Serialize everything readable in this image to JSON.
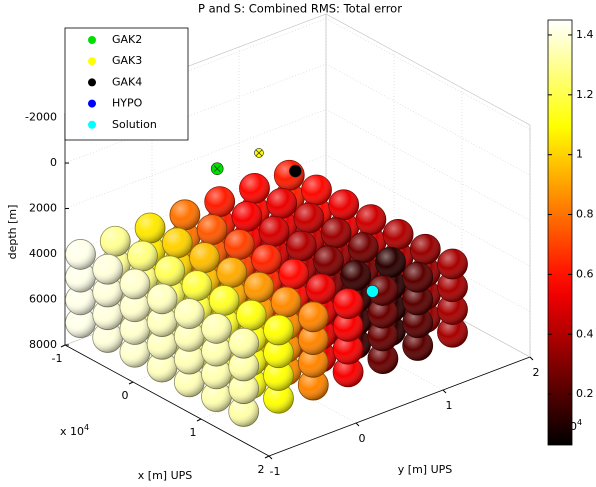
{
  "chart_data": {
    "type": "scatter3d",
    "title": "P and S: Combined RMS: Total error",
    "xlabel": "x [m] UPS",
    "ylabel": "y [m] UPS",
    "zlabel": "depth [m]",
    "x_exponent": {
      "base": "x 10",
      "power": 4
    },
    "y_exponent": {
      "base": "x 10",
      "power": 4
    },
    "xlim": [
      -1,
      2
    ],
    "ylim": [
      -1,
      2
    ],
    "zlim": [
      -2200,
      8000
    ],
    "xticks": [
      -1,
      0,
      1,
      2
    ],
    "yticks": [
      -1,
      0,
      1,
      2
    ],
    "zticks": [
      -2000,
      0,
      2000,
      4000,
      6000,
      8000
    ],
    "z_reversed": true,
    "grid": true,
    "colormap": "hot",
    "clim": [
      0.03,
      1.45
    ],
    "cticks": [
      0.2,
      0.4,
      0.6,
      0.8,
      1,
      1.2,
      1.4
    ],
    "grid_x": [
      -0.9,
      -0.5,
      -0.1,
      0.3,
      0.7,
      1.1,
      1.5
    ],
    "grid_y": [
      -0.9,
      -0.5,
      -0.1,
      0.3,
      0.7,
      1.1,
      1.5
    ],
    "grid_depth": [
      4000,
      5000,
      6000,
      7000
    ],
    "errors": [
      [
        1.42,
        1.3,
        1.05,
        0.8,
        0.62,
        0.58,
        0.62
      ],
      [
        1.4,
        1.27,
        1.0,
        0.75,
        0.55,
        0.52,
        0.58
      ],
      [
        1.38,
        1.22,
        0.96,
        0.7,
        0.48,
        0.45,
        0.52
      ],
      [
        1.36,
        1.18,
        0.92,
        0.64,
        0.4,
        0.36,
        0.46
      ],
      [
        1.35,
        1.15,
        0.88,
        0.58,
        0.3,
        0.27,
        0.4
      ],
      [
        1.34,
        1.12,
        0.85,
        0.52,
        0.15,
        0.12,
        0.35
      ],
      [
        1.33,
        1.1,
        0.84,
        0.55,
        0.25,
        0.22,
        0.38
      ]
    ],
    "stations": [
      {
        "name": "GAK2",
        "color": "#00e000",
        "x": 0.01,
        "y": -0.04,
        "depth": 0
      },
      {
        "name": "GAK3",
        "color": "#ffff00",
        "x": 0.01,
        "y": 0.44,
        "depth": 0
      },
      {
        "name": "GAK4",
        "color": "#000000",
        "x": 0.52,
        "y": 0.46,
        "depth": 0
      },
      {
        "name": "HYPO",
        "color": "#0000ff",
        "x": 1.27,
        "y": 0.76,
        "depth": 4500
      },
      {
        "name": "Solution",
        "color": "#00ffff",
        "x": 1.27,
        "y": 0.76,
        "depth": 4500
      }
    ]
  }
}
